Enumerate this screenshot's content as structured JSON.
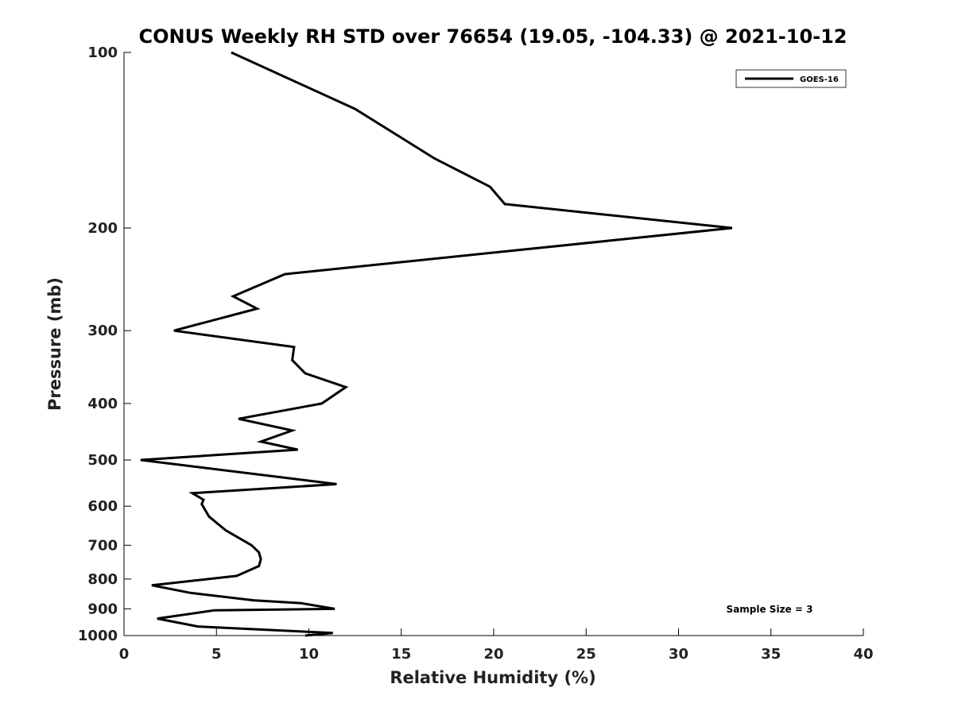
{
  "chart_data": {
    "type": "line",
    "title": "CONUS Weekly RH STD over 76654 (19.05, -104.33) @ 2021-10-12",
    "xlabel": "Relative Humidity (%)",
    "ylabel": "Pressure (mb)",
    "xlim": [
      0,
      40
    ],
    "ylim": [
      100,
      1000
    ],
    "y_scale": "log",
    "y_reversed": true,
    "grid": false,
    "legend_position": "top-right",
    "xticks": [
      0,
      5,
      10,
      15,
      20,
      25,
      30,
      35,
      40
    ],
    "yticks": [
      100,
      200,
      300,
      400,
      500,
      600,
      700,
      800,
      900,
      1000
    ],
    "annotation": "Sample Size = 3",
    "series": [
      {
        "name": "GOES-16",
        "color": "#000000",
        "x": [
          5.8,
          12.5,
          16.8,
          19.8,
          20.6,
          32.9,
          8.7,
          5.9,
          7.2,
          2.7,
          9.2,
          9.1,
          9.8,
          12.0,
          10.7,
          6.2,
          9.1,
          7.4,
          9.4,
          0.9,
          11.5,
          3.7,
          4.3,
          4.2,
          4.6,
          5.5,
          6.9,
          7.3,
          7.4,
          7.3,
          6.1,
          1.5,
          3.6,
          7.0,
          9.6,
          11.4,
          4.9,
          1.8,
          4.0,
          11.3,
          9.8
        ],
        "y": [
          100,
          125,
          152,
          170,
          182,
          200,
          240,
          262,
          275,
          300,
          320,
          337,
          355,
          375,
          400,
          425,
          445,
          465,
          480,
          500,
          550,
          570,
          585,
          595,
          625,
          660,
          700,
          720,
          740,
          760,
          790,
          820,
          845,
          870,
          880,
          900,
          905,
          935,
          965,
          990,
          1000
        ]
      }
    ]
  }
}
